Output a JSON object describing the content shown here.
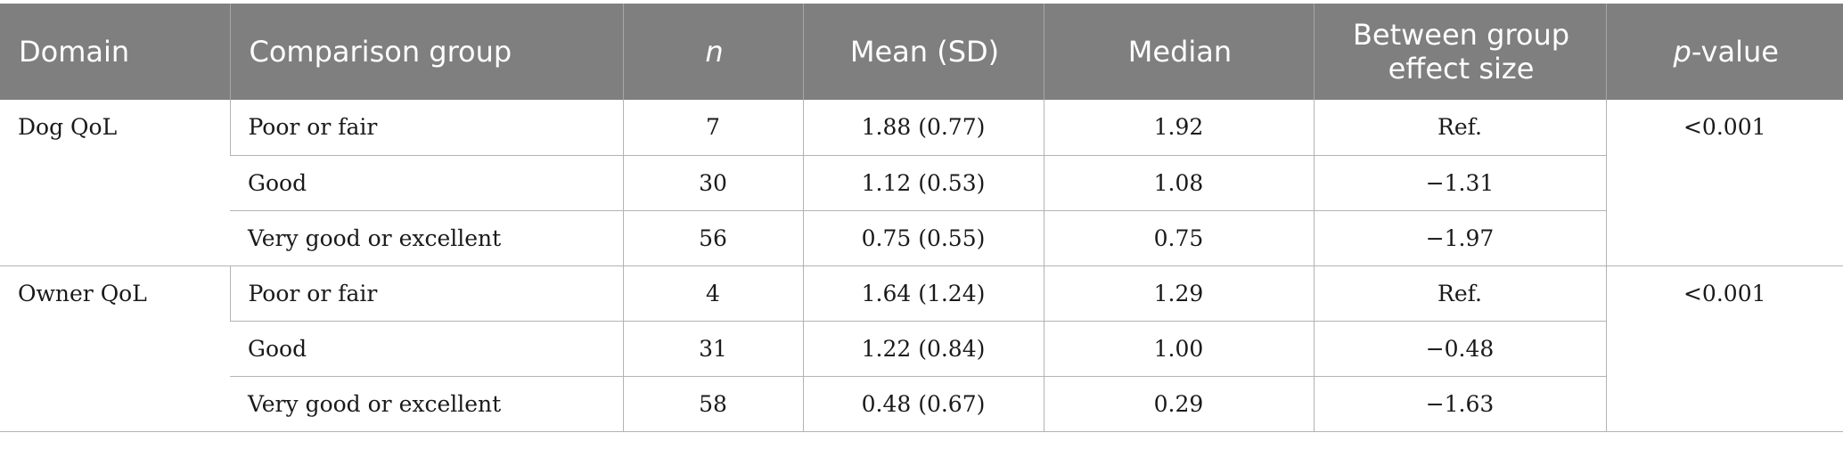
{
  "header": {
    "domain": "Domain",
    "comparison_group": "Comparison group",
    "n": "n",
    "mean_sd": "Mean (SD)",
    "median": "Median",
    "effect_size_line1": "Between group",
    "effect_size_line2": "effect size",
    "p_value_italic": "p",
    "p_value_rest": "-value"
  },
  "groups": [
    {
      "domain": "Dog QoL",
      "p_value": "<0.001",
      "rows": [
        {
          "comparison": "Poor or fair",
          "n": "7",
          "mean_sd": "1.88 (0.77)",
          "median": "1.92",
          "effect": "Ref."
        },
        {
          "comparison": "Good",
          "n": "30",
          "mean_sd": "1.12 (0.53)",
          "median": "1.08",
          "effect": "−1.31"
        },
        {
          "comparison": "Very good or excellent",
          "n": "56",
          "mean_sd": "0.75 (0.55)",
          "median": "0.75",
          "effect": "−1.97"
        }
      ]
    },
    {
      "domain": "Owner QoL",
      "p_value": "<0.001",
      "rows": [
        {
          "comparison": "Poor or fair",
          "n": "4",
          "mean_sd": "1.64 (1.24)",
          "median": "1.29",
          "effect": "Ref."
        },
        {
          "comparison": "Good",
          "n": "31",
          "mean_sd": "1.22 (0.84)",
          "median": "1.00",
          "effect": "−0.48"
        },
        {
          "comparison": "Very good or excellent",
          "n": "58",
          "mean_sd": "0.48 (0.67)",
          "median": "0.29",
          "effect": "−1.63"
        }
      ]
    }
  ]
}
